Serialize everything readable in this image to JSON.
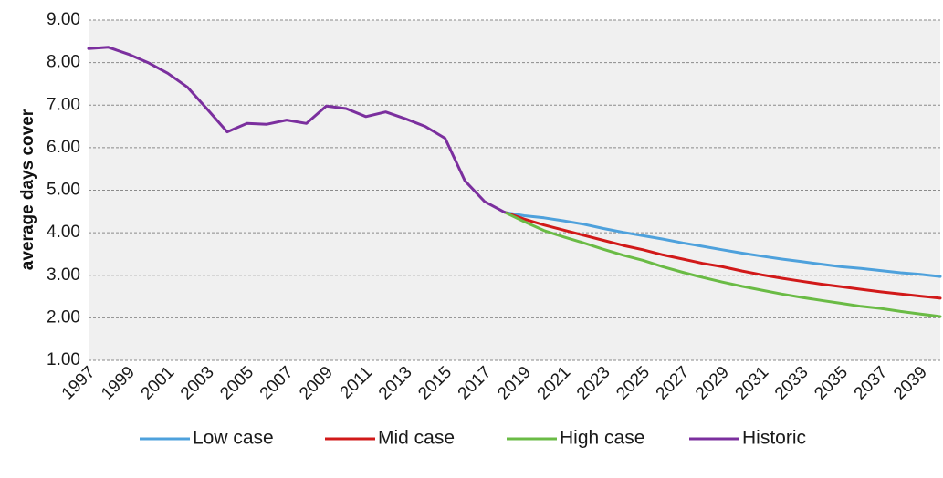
{
  "chart_data": {
    "type": "line",
    "title": "",
    "xlabel": "",
    "ylabel": "average days cover",
    "ylim": [
      1.0,
      9.0
    ],
    "yticks": [
      "1.00",
      "2.00",
      "3.00",
      "4.00",
      "5.00",
      "6.00",
      "7.00",
      "8.00",
      "9.00"
    ],
    "xlim": [
      1997,
      2040
    ],
    "xticks": [
      "1997",
      "1999",
      "2001",
      "2003",
      "2005",
      "2007",
      "2009",
      "2011",
      "2013",
      "2015",
      "2017",
      "2019",
      "2021",
      "2023",
      "2025",
      "2027",
      "2029",
      "2031",
      "2033",
      "2035",
      "2037",
      "2039"
    ],
    "grid": "horizontal dashed",
    "background": "#f0f0f0",
    "legend_position": "bottom",
    "series": [
      {
        "name": "Low case",
        "color": "#4ea1dc",
        "x": [
          2018,
          2019,
          2020,
          2021,
          2022,
          2023,
          2024,
          2025,
          2026,
          2027,
          2028,
          2029,
          2030,
          2031,
          2032,
          2033,
          2034,
          2035,
          2036,
          2037,
          2038,
          2039,
          2040
        ],
        "values": [
          4.48,
          4.4,
          4.35,
          4.28,
          4.2,
          4.1,
          4.01,
          3.93,
          3.85,
          3.76,
          3.68,
          3.6,
          3.52,
          3.45,
          3.38,
          3.32,
          3.26,
          3.2,
          3.16,
          3.11,
          3.06,
          3.02,
          2.97
        ]
      },
      {
        "name": "Mid case",
        "color": "#d11919",
        "x": [
          2018,
          2019,
          2020,
          2021,
          2022,
          2023,
          2024,
          2025,
          2026,
          2027,
          2028,
          2029,
          2030,
          2031,
          2032,
          2033,
          2034,
          2035,
          2036,
          2037,
          2038,
          2039,
          2040
        ],
        "values": [
          4.48,
          4.32,
          4.18,
          4.06,
          3.94,
          3.82,
          3.7,
          3.6,
          3.48,
          3.38,
          3.28,
          3.2,
          3.1,
          3.01,
          2.93,
          2.86,
          2.79,
          2.73,
          2.67,
          2.61,
          2.56,
          2.51,
          2.46
        ]
      },
      {
        "name": "High case",
        "color": "#6abb45",
        "x": [
          2018,
          2019,
          2020,
          2021,
          2022,
          2023,
          2024,
          2025,
          2026,
          2027,
          2028,
          2029,
          2030,
          2031,
          2032,
          2033,
          2034,
          2035,
          2036,
          2037,
          2038,
          2039,
          2040
        ],
        "values": [
          4.48,
          4.26,
          4.05,
          3.9,
          3.76,
          3.61,
          3.47,
          3.35,
          3.2,
          3.07,
          2.95,
          2.84,
          2.74,
          2.65,
          2.56,
          2.48,
          2.41,
          2.34,
          2.27,
          2.22,
          2.15,
          2.09,
          2.03
        ]
      },
      {
        "name": "Historic",
        "color": "#7b2f9e",
        "x": [
          1997,
          1998,
          1999,
          2000,
          2001,
          2002,
          2003,
          2004,
          2005,
          2006,
          2007,
          2008,
          2009,
          2010,
          2011,
          2012,
          2013,
          2014,
          2015,
          2016,
          2017,
          2018
        ],
        "values": [
          8.33,
          8.36,
          8.2,
          8.0,
          7.75,
          7.42,
          6.9,
          6.37,
          6.57,
          6.55,
          6.65,
          6.57,
          6.98,
          6.92,
          6.73,
          6.84,
          6.68,
          6.5,
          6.22,
          5.22,
          4.73,
          4.48
        ]
      }
    ]
  }
}
